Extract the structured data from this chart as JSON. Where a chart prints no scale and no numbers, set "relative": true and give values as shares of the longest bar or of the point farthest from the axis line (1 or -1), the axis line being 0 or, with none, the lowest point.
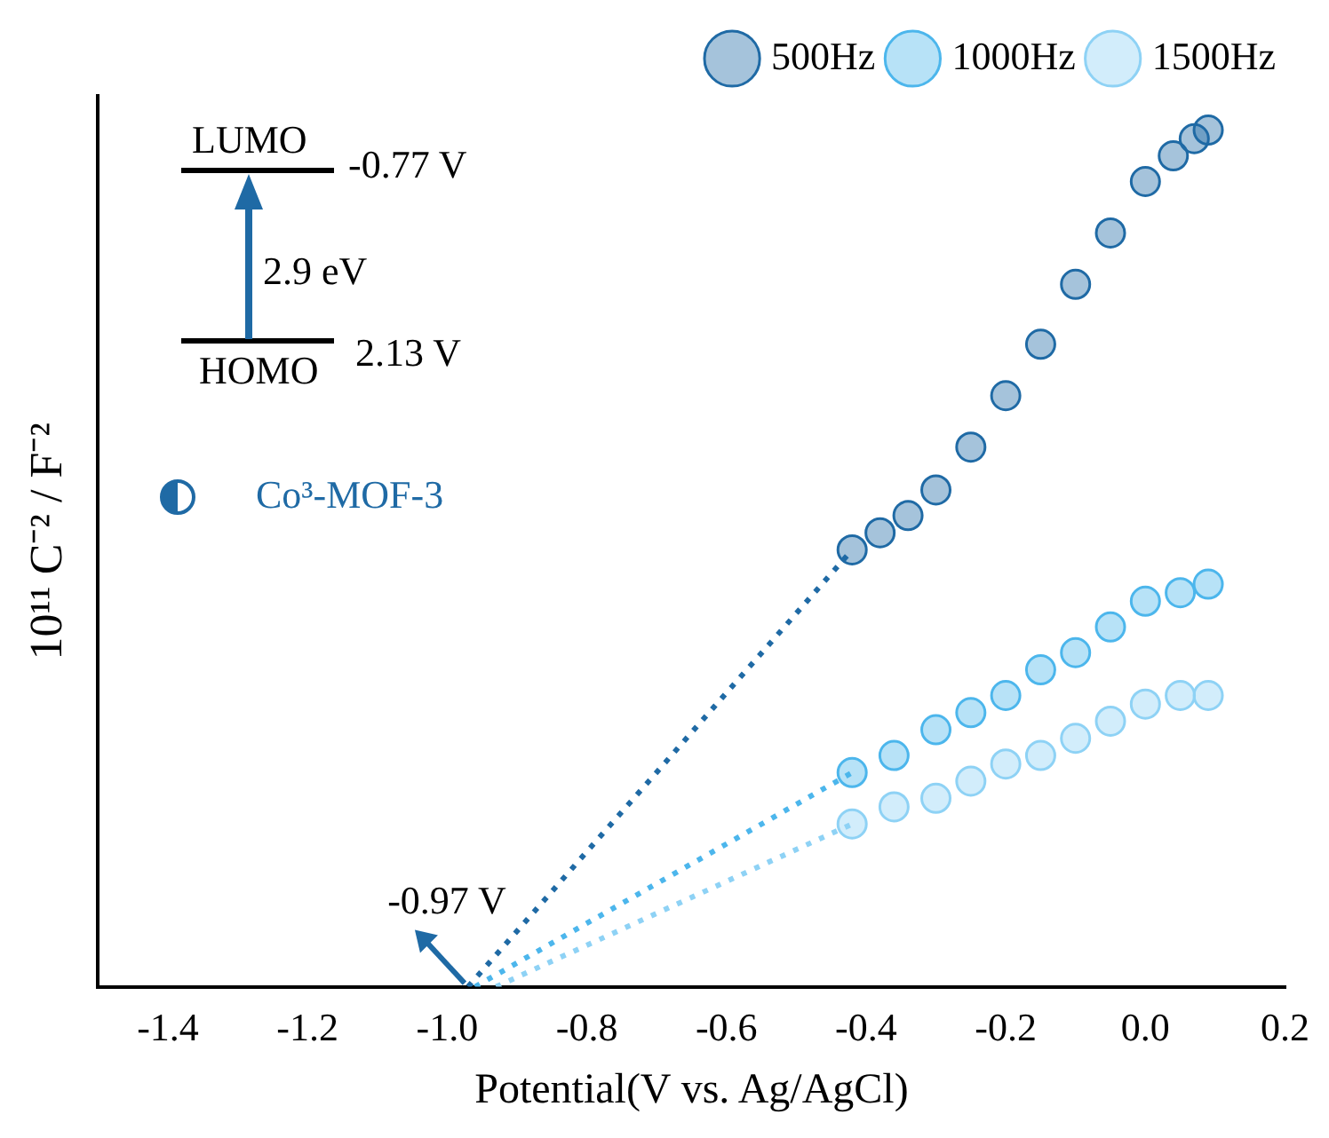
{
  "chart_data": {
    "type": "scatter",
    "relative": true,
    "xlabel": "Potential(V vs. Ag/AgCl)",
    "ylabel": "10¹¹ C⁻² / F⁻²",
    "xlim": [
      -1.5,
      0.2
    ],
    "xticks": [
      -1.4,
      -1.2,
      {
        "value": -1,
        "label": "-1.0"
      },
      -0.8,
      -0.6,
      -0.4,
      -0.2,
      {
        "value": 0,
        "label": "0.0"
      },
      0.2
    ],
    "grid": false,
    "legend": "top",
    "marker": "circle",
    "series": [
      {
        "name": "500Hz",
        "color": "#1f6aa5",
        "x": [
          -0.42,
          -0.38,
          -0.34,
          -0.3,
          -0.25,
          -0.2,
          -0.15,
          -0.1,
          -0.05,
          0,
          0.04,
          0.07,
          0.09
        ],
        "values": [
          0.51,
          0.53,
          0.55,
          0.58,
          0.63,
          0.69,
          0.75,
          0.82,
          0.88,
          0.94,
          0.97,
          0.99,
          1
        ]
      },
      {
        "name": "1000Hz",
        "color": "#4cb6ec",
        "x": [
          -0.42,
          -0.36,
          -0.3,
          -0.25,
          -0.2,
          -0.15,
          -0.1,
          -0.05,
          0,
          0.05,
          0.09
        ],
        "values": [
          0.25,
          0.27,
          0.3,
          0.32,
          0.34,
          0.37,
          0.39,
          0.42,
          0.45,
          0.46,
          0.47
        ]
      },
      {
        "name": "1500Hz",
        "color": "#8ed2f5",
        "x": [
          -0.42,
          -0.36,
          -0.3,
          -0.25,
          -0.2,
          -0.15,
          -0.1,
          -0.05,
          0,
          0.05,
          0.09
        ],
        "values": [
          0.19,
          0.21,
          0.22,
          0.24,
          0.26,
          0.27,
          0.29,
          0.31,
          0.33,
          0.34,
          0.34
        ]
      },
      {
        "type": "line",
        "marker": "none",
        "line_style": "dotted",
        "color": "#1f6aa5",
        "x": [
          -0.97,
          -0.42
        ],
        "values": [
          0,
          0.51
        ]
      },
      {
        "type": "line",
        "marker": "none",
        "line_style": "dotted",
        "color": "#4cb6ec",
        "x": [
          -0.96,
          -0.42
        ],
        "values": [
          0,
          0.25
        ]
      },
      {
        "type": "line",
        "marker": "none",
        "line_style": "dotted",
        "color": "#8ed2f5",
        "x": [
          -0.93,
          -0.42
        ],
        "values": [
          0,
          0.19
        ]
      }
    ],
    "annotations": [
      "LUMO",
      "-0.77 V",
      "2.9 eV",
      "HOMO",
      "2.13 V",
      "Co³-MOF-3",
      {
        "text": "-0.97 V",
        "x": -0.97,
        "y": 0
      }
    ]
  }
}
